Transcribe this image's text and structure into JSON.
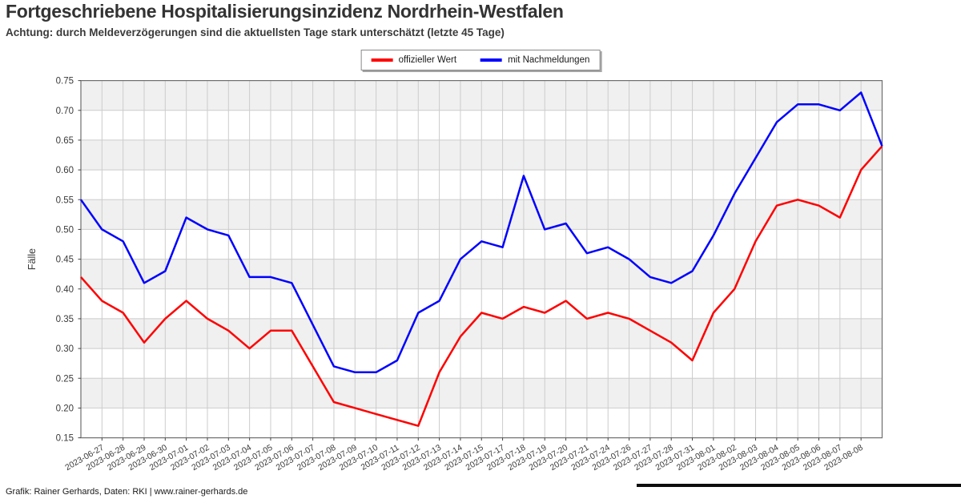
{
  "chart_data": {
    "type": "line",
    "title": "Fortgeschriebene Hospitalisierungsinzidenz Nordrhein-Westfalen",
    "subtitle": "Achtung: durch Meldeverzögerungen sind die aktuellsten Tage stark unterschätzt (letzte 45 Tage)",
    "ylabel": "Fälle",
    "xlabel": "",
    "ylim": [
      0.15,
      0.75
    ],
    "ytick_step": 0.05,
    "ytick_labels": [
      "0.15",
      "0.20",
      "0.25",
      "0.30",
      "0.35",
      "0.40",
      "0.45",
      "0.50",
      "0.55",
      "0.60",
      "0.65",
      "0.70",
      "0.75"
    ],
    "grid": true,
    "legend_position": "top-center",
    "band_color": "#f0f0f0",
    "grid_color": "#cccccc",
    "axis_color": "#6e6e6e",
    "tick_label_color": "#3a3a3a",
    "categories": [
      "",
      "2023-06-27",
      "2023-06-28",
      "2023-06-29",
      "2023-06-30",
      "2023-07-01",
      "2023-07-02",
      "2023-07-03",
      "2023-07-04",
      "2023-07-05",
      "2023-07-06",
      "2023-07-07",
      "2023-07-08",
      "2023-07-09",
      "2023-07-10",
      "2023-07-11",
      "2023-07-12",
      "2023-07-13",
      "2023-07-14",
      "2023-07-15",
      "2023-07-17",
      "2023-07-18",
      "2023-07-19",
      "2023-07-20",
      "2023-07-21",
      "2023-07-24",
      "2023-07-26",
      "2023-07-27",
      "2023-07-28",
      "2023-07-31",
      "2023-08-01",
      "2023-08-02",
      "2023-08-03",
      "2023-08-04",
      "2023-08-05",
      "2023-08-06",
      "2023-08-07",
      "2023-08-08",
      ""
    ],
    "series": [
      {
        "name": "offizieller Wert",
        "color": "#ff0000",
        "values": [
          0.42,
          0.38,
          0.36,
          0.31,
          0.35,
          0.38,
          0.35,
          0.33,
          0.3,
          0.33,
          0.33,
          0.27,
          0.21,
          0.2,
          0.19,
          0.18,
          0.17,
          0.26,
          0.32,
          0.36,
          0.35,
          0.37,
          0.36,
          0.38,
          0.35,
          0.36,
          0.35,
          0.33,
          0.31,
          0.28,
          0.36,
          0.4,
          0.48,
          0.54,
          0.55,
          0.54,
          0.52,
          0.6,
          0.64
        ]
      },
      {
        "name": "mit Nachmeldungen",
        "color": "#0000ff",
        "values": [
          0.55,
          0.5,
          0.48,
          0.41,
          0.43,
          0.52,
          0.5,
          0.49,
          0.42,
          0.42,
          0.41,
          0.34,
          0.27,
          0.26,
          0.26,
          0.28,
          0.36,
          0.38,
          0.45,
          0.48,
          0.47,
          0.59,
          0.5,
          0.51,
          0.46,
          0.47,
          0.45,
          0.42,
          0.41,
          0.43,
          0.49,
          0.56,
          0.62,
          0.68,
          0.71,
          0.71,
          0.7,
          0.73,
          0.64
        ]
      }
    ]
  },
  "footer": {
    "credit": "Grafik: Rainer Gerhards, Daten: RKI | www.rainer-gerhards.de"
  }
}
